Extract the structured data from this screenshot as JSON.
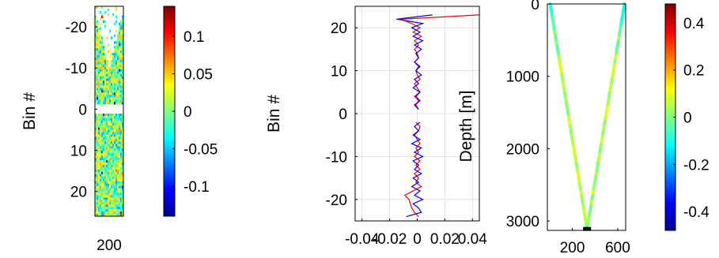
{
  "chart_data": [
    {
      "type": "heatmap",
      "title": "",
      "xlabel": "",
      "ylabel": "Bin #",
      "ylim": [
        -25,
        26
      ],
      "y_reversed": true,
      "x_ticks": [
        "200"
      ],
      "y_ticks": [
        {
          "value": -20,
          "label": "-20"
        },
        {
          "value": -10,
          "label": "-10"
        },
        {
          "value": 0,
          "label": "0"
        },
        {
          "value": 10,
          "label": "10"
        },
        {
          "value": 20,
          "label": "20"
        }
      ],
      "colorbar": {
        "range": [
          -0.14,
          0.14
        ],
        "colormap": "jet",
        "ticks": [
          {
            "value": 0.1,
            "label": "0.1"
          },
          {
            "value": 0.05,
            "label": "0.05"
          },
          {
            "value": 0,
            "label": "0"
          },
          {
            "value": -0.05,
            "label": "-0.05"
          },
          {
            "value": -0.1,
            "label": "-0.1"
          }
        ]
      }
    },
    {
      "type": "line",
      "title": "",
      "xlabel": "",
      "ylabel": "Bin #",
      "xlim": [
        -0.045,
        0.045
      ],
      "ylim": [
        -25,
        25
      ],
      "grid": true,
      "x_ticks": [
        {
          "value": -0.04,
          "label": "-0.04"
        },
        {
          "value": -0.02,
          "label": "-0.02"
        },
        {
          "value": 0,
          "label": "0"
        },
        {
          "value": 0.02,
          "label": "0.02"
        },
        {
          "value": 0.04,
          "label": "0.04"
        }
      ],
      "y_ticks": [
        {
          "value": 20,
          "label": "20"
        },
        {
          "value": 10,
          "label": "10"
        },
        {
          "value": 0,
          "label": "0"
        },
        {
          "value": -10,
          "label": "-10"
        },
        {
          "value": -20,
          "label": "-20"
        }
      ],
      "series": [
        {
          "color": "#ff0000",
          "points": [
            [
              0.001,
              -24
            ],
            [
              -0.002,
              -23
            ],
            [
              -0.004,
              -22
            ],
            [
              -0.005,
              -21
            ],
            [
              -0.006,
              -20
            ],
            [
              -0.009,
              -19
            ],
            [
              -0.003,
              -18
            ],
            [
              0.003,
              -17
            ],
            [
              -0.001,
              -16
            ],
            [
              0.001,
              -15
            ],
            [
              -0.002,
              -14
            ],
            [
              0.002,
              -13
            ],
            [
              -0.001,
              -12
            ],
            [
              0.002,
              -11
            ],
            [
              -0.002,
              -10
            ],
            [
              0.001,
              -9
            ],
            [
              -0.001,
              -8
            ],
            [
              0.002,
              -7
            ],
            [
              0.0,
              -6
            ],
            [
              -0.002,
              -5
            ],
            [
              0.001,
              -4
            ],
            [
              0.002,
              -3
            ],
            [
              -0.001,
              -2
            ],
            [
              null,
              null
            ],
            [
              0.001,
              1
            ],
            [
              -0.001,
              2
            ],
            [
              0.001,
              3
            ],
            [
              -0.002,
              4
            ],
            [
              0.002,
              5
            ],
            [
              0.0,
              6
            ],
            [
              -0.002,
              7
            ],
            [
              0.002,
              8
            ],
            [
              0.0,
              9
            ],
            [
              -0.001,
              10
            ],
            [
              0.001,
              11
            ],
            [
              -0.002,
              12
            ],
            [
              0.001,
              13
            ],
            [
              0.0,
              14
            ],
            [
              -0.002,
              15
            ],
            [
              0.001,
              16
            ],
            [
              -0.002,
              17
            ],
            [
              0.003,
              18
            ],
            [
              -0.003,
              19
            ],
            [
              0.002,
              20
            ],
            [
              -0.004,
              21
            ],
            [
              -0.012,
              22
            ],
            [
              0.045,
              23
            ]
          ]
        },
        {
          "color": "#0000ff",
          "points": [
            [
              -0.008,
              -24
            ],
            [
              0.003,
              -23
            ],
            [
              0.001,
              -22
            ],
            [
              -0.003,
              -21
            ],
            [
              0.004,
              -20
            ],
            [
              -0.002,
              -19
            ],
            [
              0.002,
              -18
            ],
            [
              -0.004,
              -17
            ],
            [
              0.001,
              -16
            ],
            [
              -0.003,
              -15
            ],
            [
              0.003,
              -14
            ],
            [
              -0.002,
              -13
            ],
            [
              0.001,
              -12
            ],
            [
              -0.003,
              -11
            ],
            [
              0.004,
              -10
            ],
            [
              -0.002,
              -9
            ],
            [
              0.003,
              -8
            ],
            [
              -0.004,
              -7
            ],
            [
              0.002,
              -6
            ],
            [
              -0.003,
              -5
            ],
            [
              0.001,
              -4
            ],
            [
              -0.002,
              -3
            ],
            [
              0.002,
              -2
            ],
            [
              null,
              null
            ],
            [
              0.001,
              1
            ],
            [
              -0.002,
              2
            ],
            [
              0.002,
              3
            ],
            [
              -0.001,
              4
            ],
            [
              0.002,
              5
            ],
            [
              -0.003,
              6
            ],
            [
              0.001,
              7
            ],
            [
              -0.002,
              8
            ],
            [
              0.003,
              9
            ],
            [
              -0.001,
              10
            ],
            [
              0.002,
              11
            ],
            [
              -0.002,
              12
            ],
            [
              0.001,
              13
            ],
            [
              -0.001,
              14
            ],
            [
              0.003,
              15
            ],
            [
              -0.002,
              16
            ],
            [
              0.004,
              17
            ],
            [
              -0.003,
              18
            ],
            [
              0.002,
              19
            ],
            [
              -0.004,
              20
            ],
            [
              0.004,
              21
            ],
            [
              -0.015,
              22
            ],
            [
              0.011,
              23
            ]
          ]
        }
      ]
    },
    {
      "type": "heatmap",
      "title": "",
      "xlabel": "",
      "ylabel": "Depth [m]",
      "xlim": [
        -20,
        670
      ],
      "ylim": [
        0,
        3130
      ],
      "y_reversed": true,
      "x_ticks": [
        {
          "value": 200,
          "label": "200"
        },
        {
          "value": 600,
          "label": "600"
        }
      ],
      "y_ticks": [
        {
          "value": 0,
          "label": "0"
        },
        {
          "value": 1000,
          "label": "1000"
        },
        {
          "value": 2000,
          "label": "2000"
        },
        {
          "value": 3000,
          "label": "3000"
        }
      ],
      "fan_paths": {
        "left_top_x": 5,
        "right_top_x": 660,
        "bottom_x": 330,
        "bottom_depth": 3110
      },
      "colorbar": {
        "range": [
          -0.48,
          0.48
        ],
        "colormap": "jet",
        "ticks": [
          {
            "value": 0.4,
            "label": "0.4"
          },
          {
            "value": 0.2,
            "label": "0.2"
          },
          {
            "value": 0,
            "label": "0"
          },
          {
            "value": -0.2,
            "label": "-0.2"
          },
          {
            "value": -0.4,
            "label": "-0.4"
          }
        ]
      }
    }
  ]
}
